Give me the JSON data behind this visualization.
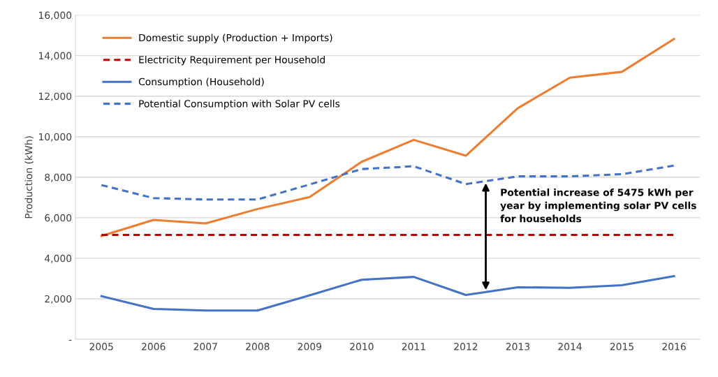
{
  "chart_data": {
    "type": "line",
    "ylabel": "Production (kWh)",
    "x": [
      2005,
      2006,
      2007,
      2008,
      2009,
      2010,
      2011,
      2012,
      2013,
      2014,
      2015,
      2016
    ],
    "series": [
      {
        "name": "Domestic supply (Production + Imports)",
        "color": "#ed7d31",
        "line_style": "solid",
        "values": [
          5100,
          5890,
          5720,
          6430,
          7020,
          8760,
          9840,
          9060,
          11410,
          12910,
          13200,
          14820
        ]
      },
      {
        "name": "Electricity Requirement per Household",
        "color": "#c00000",
        "line_style": "dashed",
        "values": [
          5150,
          5150,
          5150,
          5150,
          5150,
          5150,
          5150,
          5150,
          5150,
          5150,
          5150,
          5150
        ]
      },
      {
        "name": "Consumption (Household)",
        "color": "#4472c4",
        "line_style": "solid",
        "values": [
          2130,
          1500,
          1420,
          1420,
          2170,
          2940,
          3080,
          2190,
          2570,
          2540,
          2670,
          3120
        ]
      },
      {
        "name": "Potential Consumption with Solar PV cells",
        "color": "#4472c4",
        "line_style": "dashed",
        "values": [
          7610,
          6970,
          6900,
          6900,
          7640,
          8400,
          8540,
          7660,
          8040,
          8040,
          8150,
          8570
        ]
      }
    ],
    "xlim": [
      2004.5,
      2016.5
    ],
    "xticks": [
      2005,
      2006,
      2007,
      2008,
      2009,
      2010,
      2011,
      2012,
      2013,
      2014,
      2015,
      2016
    ],
    "ylim": [
      0,
      16000
    ],
    "yticks": [
      {
        "value": 0,
        "label": "-"
      },
      {
        "value": 2000,
        "label": "2,000"
      },
      {
        "value": 4000,
        "label": "4,000"
      },
      {
        "value": 6000,
        "label": "6,000"
      },
      {
        "value": 8000,
        "label": "8,000"
      },
      {
        "value": 10000,
        "label": "10,000"
      },
      {
        "value": 12000,
        "label": "12,000"
      },
      {
        "value": 14000,
        "label": "14,000"
      },
      {
        "value": 16000,
        "label": "16,000"
      }
    ],
    "grid": "y",
    "legend": "top left",
    "marker": "none",
    "annotations": [
      "Potential increase of 5475 kWh per\nyear by implementing solar PV cells\nfor households"
    ]
  }
}
